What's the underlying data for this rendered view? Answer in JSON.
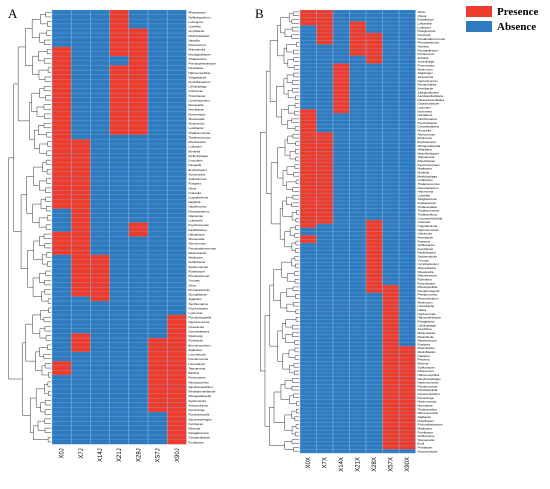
{
  "colors": {
    "presence": "#ef3b2c",
    "absence": "#2f7bbf",
    "grid": "#9bbfe0"
  },
  "legend": {
    "presence": "Presence",
    "absence": "Absence"
  },
  "panels": [
    {
      "label": "A",
      "columns": [
        "X0J",
        "X7J",
        "X14J",
        "X21J",
        "X28J",
        "XS7J",
        "X90J"
      ],
      "rows": [
        "Phaeobacter",
        "Sulfitobacterium",
        "Leisingera",
        "Colwellia",
        "Amylibacter",
        "Albirhodobacter",
        "Nautella",
        "Planococcus",
        "Aliimarinella",
        "Mucilaginibacter",
        "Thalassobius",
        "Pseudophaeobacter",
        "Parahaliea",
        "Halioxenophilus",
        "Vulgatibacter",
        "Arcticibacterium",
        "Cellulophaga",
        "Colimonas",
        "Tritonibacter",
        "Cyclobacterium",
        "Woeseiella",
        "Arenibacter",
        "Roseovarius",
        "Shewanella",
        "Alcanivorax",
        "Lentibacter",
        "Thalassomonas",
        "Thalassococcus",
        "Rhodobacter",
        "Lutibacter",
        "Moritella",
        "Methylophaga",
        "Leucothrix",
        "Kangiella",
        "Erythrobacter",
        "Aureimarina",
        "Actibacterium",
        "Ruegeria",
        "Vibrio",
        "Gramella",
        "Cognatishimia",
        "Sagittula",
        "Nautilimonas",
        "Flavobacterium",
        "Glaciecola",
        "Loktanella",
        "Psychromonas",
        "Pacificibacter",
        "Halioglobus",
        "Shewanella",
        "Alteromonas",
        "Pseudoalteromonas",
        "Marinobacter",
        "Maribacter",
        "Sulfitobacter",
        "Sedimenticola",
        "Polaribacter",
        "Photobacterium",
        "Ymonas",
        "Vibrio",
        "Photobacterium",
        "Spongiibacter",
        "Algiphilus",
        "Xanthomarina",
        "Psychrobacter",
        "Lutimonas",
        "Pseudohongiella",
        "Neptunomonas",
        "Oceanicola",
        "Oceanisphaera",
        "Marinicola",
        "Fretibacter",
        "Brumimicrobium",
        "Algibacter",
        "Limimaricola",
        "Pseudomonas",
        "Litoreibacter",
        "Tateyamaria",
        "Bacillus",
        "Roseovarius",
        "Nitrosopumilus",
        "Saccharospirillum",
        "Meridianimaribacter",
        "Winogradskyella",
        "Sediminicola",
        "Antarctobacter",
        "Persicivirga",
        "Poseidonocella",
        "Saccharophagus",
        "Ketobacter",
        "Mesonia",
        "Paraglaciecola",
        "Octadecabacter",
        "Pontibacter"
      ],
      "rows_total": 94
    },
    {
      "label": "B",
      "columns": [
        "X0X",
        "X7X",
        "X14X",
        "X21X",
        "X28X",
        "X57X",
        "X90X"
      ],
      "rows": [
        "Vibrio",
        "Olleya",
        "Polaribacter",
        "Loktanella",
        "Lutibacter",
        "Pelagimonas",
        "Fluviicola",
        "Pseudoalteromonas",
        "Photobacterium",
        "Aliivibrio",
        "Aestuariibacter",
        "Ponticoccus",
        "Zobellia",
        "Aurantivirga",
        "Roseovarius",
        "Marinovum",
        "Algiphagus",
        "Jannaschia",
        "Neptunicoccus",
        "Pseudohaliea",
        "Arenibacter",
        "Salegentibacter",
        "Ascidiaceihabitans",
        "Parasedimentitalea",
        "Octadecabacter",
        "Lacinutrix",
        "Idiomarina",
        "Nonlabens",
        "Xanthomarina",
        "Psychrobacter",
        "Oceanihabitans",
        "Moraxella",
        "Alteromonas",
        "Echinicola",
        "Erythrobacter",
        "Winogradskyella",
        "Alkalitalea",
        "Mesoflavibacter",
        "Tateyamaria",
        "Rhodobacter",
        "Psychroserpens",
        "Maribacter",
        "Moritella",
        "Methylophaga",
        "Lentibacter",
        "Thalassococcus",
        "Flavobacterium",
        "Halomonas",
        "Colwellia",
        "Alloglaciecola",
        "Actibacterium",
        "Thalassotalea",
        "Thalassomonas",
        "Thalassolituus",
        "Leeuwenhoekiella",
        "Gramella",
        "Cognatishimia",
        "Neptunomonas",
        "Glaciecola",
        "Arenibacter",
        "Ruegeria",
        "Sulfitobacter",
        "Arenibacter",
        "Pacificibacter",
        "Sedimenticola",
        "Ymonas",
        "Cyclobacterium",
        "Aliimaribacter",
        "Shewanella",
        "Rheinheimera",
        "Rubritalea",
        "Roseobacter",
        "Rhodopirellula",
        "Pseudoruegeria",
        "Pseudomonas",
        "Mesorhizobium",
        "Marinovum",
        "Litoreibacter",
        "Haliea",
        "Hyphomonas",
        "Halocynthiibacter",
        "Pelagibacter",
        "Cellulophaga",
        "Amphritea",
        "Marinobacter",
        "Mariniflexile",
        "Nitratireductor",
        "Ruegeria",
        "Phaeobacter",
        "Mariniblastus",
        "Oleispira",
        "Pleionea",
        "Bizionia",
        "Sulfitobacter",
        "Paracoccus",
        "Halioxenophilus",
        "Saccharophagus",
        "Neptunomonas",
        "Pseudomonas",
        "Rhodopirellula",
        "Oceanospirillum",
        "Persicivirga",
        "Marinomonas",
        "Mycoplana",
        "Thalassotalea",
        "Nitrosopumilus",
        "Algibacter",
        "Polaribacter",
        "Profundibacterium",
        "Maribacter",
        "Pontibacter",
        "Sulfitobacter",
        "Tateyamaria",
        "Ecoli",
        "Fretibacter",
        "Antarctobacter"
      ],
      "rows_total": 116
    }
  ]
}
